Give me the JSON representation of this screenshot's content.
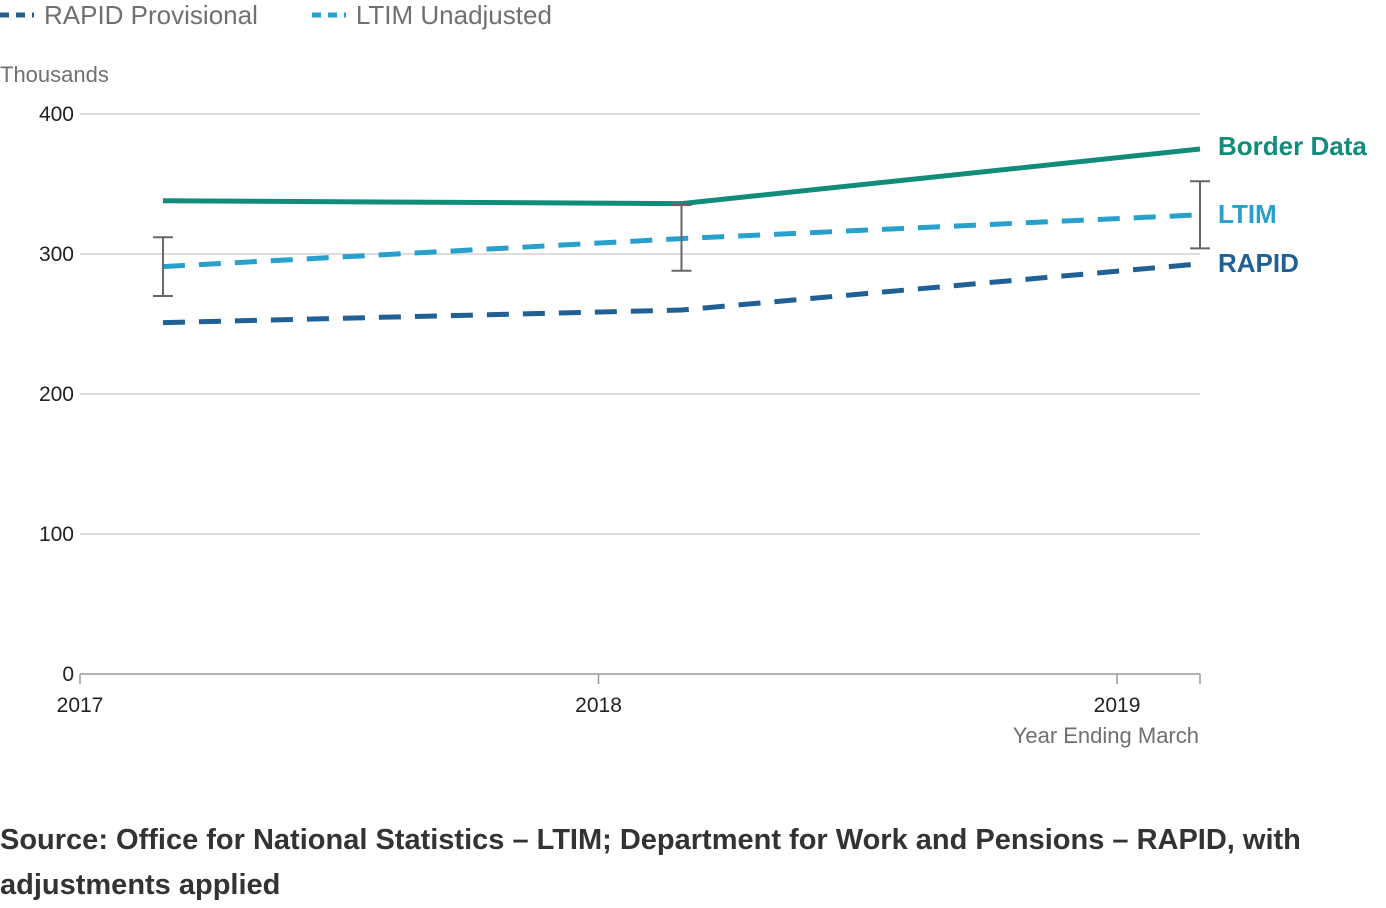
{
  "legend": [
    {
      "label": "RAPID Provisional",
      "color": "#206095",
      "dashed": true
    },
    {
      "label": "LTIM Unadjusted",
      "color": "#27a0cc",
      "dashed": true
    }
  ],
  "source_text": "Source: Office for National Statistics – LTIM; Department for Work and Pensions – RAPID, with adjustments applied",
  "chart_data": {
    "type": "line",
    "ylabel": "Thousands",
    "xlabel": "Year Ending March",
    "ylim": [
      0,
      400
    ],
    "yticks": [
      0,
      100,
      200,
      300,
      400
    ],
    "xlim": [
      2017,
      2019.16
    ],
    "xticks": [
      2017,
      2018,
      2019
    ],
    "grid": true,
    "series": [
      {
        "name": "Border Data",
        "color": "#118c7b",
        "dashed": false,
        "x": [
          2017.16,
          2018.16,
          2019.16
        ],
        "values": [
          338,
          336,
          375
        ]
      },
      {
        "name": "LTIM",
        "color": "#27a0cc",
        "dashed": true,
        "x": [
          2017.16,
          2018.16,
          2019.16
        ],
        "values": [
          291,
          311,
          328
        ]
      },
      {
        "name": "RAPID",
        "color": "#206095",
        "dashed": true,
        "x": [
          2017.16,
          2018.16,
          2019.16
        ],
        "values": [
          251,
          260,
          293
        ]
      }
    ],
    "error_bars": [
      {
        "x": 2017.16,
        "low": 270,
        "high": 312
      },
      {
        "x": 2018.16,
        "low": 288,
        "high": 335
      },
      {
        "x": 2019.16,
        "low": 304,
        "high": 352
      }
    ],
    "error_bar_color": "#666666"
  }
}
